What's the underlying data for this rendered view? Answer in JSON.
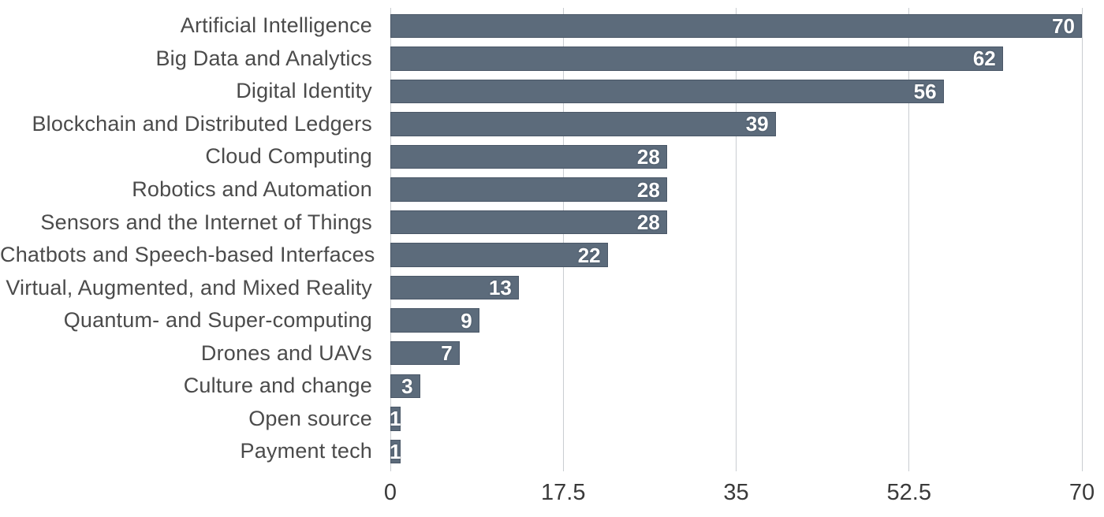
{
  "chart_data": {
    "type": "bar",
    "orientation": "horizontal",
    "title": "",
    "xlabel": "",
    "ylabel": "",
    "categories": [
      "Artificial Intelligence",
      "Big Data and Analytics",
      "Digital Identity",
      "Blockchain and Distributed Ledgers",
      "Cloud Computing",
      "Robotics and Automation",
      "Sensors and the Internet of Things",
      "Chatbots and Speech-based Interfaces",
      "Virtual, Augmented, and Mixed Reality",
      "Quantum- and Super-computing",
      "Drones and UAVs",
      "Culture and change",
      "Open source",
      "Payment tech"
    ],
    "values": [
      70,
      62,
      56,
      39,
      28,
      28,
      28,
      22,
      13,
      9,
      7,
      3,
      1,
      1
    ],
    "xlim": [
      0,
      70
    ],
    "x_ticks": [
      0,
      17.5,
      35,
      52.5,
      70
    ],
    "x_tick_labels": [
      "0",
      "17.5",
      "35",
      "52.5",
      "70"
    ],
    "grid": "vertical-only",
    "legend": "none",
    "value_labels": "inside-bar-end",
    "colors": {
      "bar": "#5c6b7b",
      "value_label": "#ffffff",
      "category_label": "#4b4b4b",
      "tick_label": "#3a3a3a",
      "gridline": "#c9cdd1",
      "background": "#ffffff"
    }
  }
}
